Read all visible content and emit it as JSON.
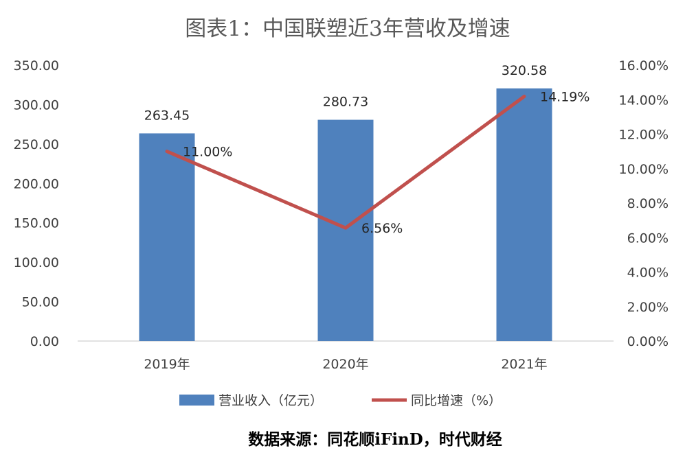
{
  "chart_data": {
    "type": "bar",
    "title": "图表1：中国联塑近3年营收及增速",
    "categories": [
      "2019年",
      "2020年",
      "2021年"
    ],
    "series": [
      {
        "name": "营业收入（亿元）",
        "type": "bar",
        "axis": "left",
        "color": "#4f81bd",
        "values": [
          263.45,
          280.73,
          320.58
        ],
        "labels": [
          "263.45",
          "280.73",
          "320.58"
        ]
      },
      {
        "name": "同比增速（%）",
        "type": "line",
        "axis": "right",
        "color": "#c0504d",
        "values": [
          11.0,
          6.56,
          14.19
        ],
        "labels": [
          "11.00%",
          "6.56%",
          "14.19%"
        ]
      }
    ],
    "y_left": {
      "min": 0,
      "max": 350,
      "step": 50,
      "tick_labels": [
        "0.00",
        "50.00",
        "100.00",
        "150.00",
        "200.00",
        "250.00",
        "300.00",
        "350.00"
      ]
    },
    "y_right": {
      "min": 0,
      "max": 16,
      "step": 2,
      "tick_labels": [
        "0.00%",
        "2.00%",
        "4.00%",
        "6.00%",
        "8.00%",
        "10.00%",
        "12.00%",
        "14.00%",
        "16.00%"
      ]
    },
    "grid": false,
    "legend_position": "bottom",
    "source": "数据来源：同花顺iFinD，时代财经"
  }
}
